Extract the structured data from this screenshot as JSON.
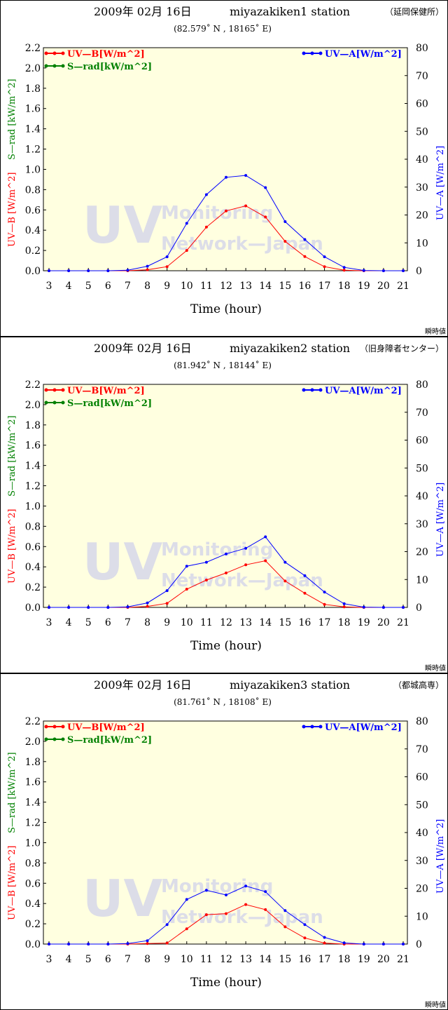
{
  "colors": {
    "plot_bg": "#ffffe0",
    "uvb": "#ff0000",
    "uva": "#0000ff",
    "srad": "#008000",
    "watermark": "#dcdde8"
  },
  "watermark": {
    "big": "UV",
    "line1": "Monitoring",
    "line2": "Network—Japan"
  },
  "chart_data": [
    {
      "type": "line",
      "date": "2009年 02月 16日",
      "station": "miyazakiken1 station",
      "station_jp": "（延岡保健所）",
      "coords": "(82.579˚ N , 18165˚ E)",
      "xlabel": "Time (hour)",
      "ylabel_left_red": "UV—B [W/m^2]",
      "ylabel_left_green": "S—rad [kW/m^2]",
      "ylabel_right": "UV—A [W/m^2]",
      "ylim_left": [
        0,
        2.2
      ],
      "ylim_right": [
        0,
        80
      ],
      "xlim": [
        3,
        21
      ],
      "x_ticks": [
        "3",
        "4",
        "5",
        "6",
        "7",
        "8",
        "9",
        "10",
        "11",
        "12",
        "13",
        "14",
        "15",
        "16",
        "17",
        "18",
        "19",
        "20",
        "21"
      ],
      "y_ticks_left": [
        "0.0",
        "0.2",
        "0.4",
        "0.6",
        "0.8",
        "1.0",
        "1.2",
        "1.4",
        "1.6",
        "1.8",
        "2.0",
        "2.2"
      ],
      "y_ticks_right": [
        "0",
        "10",
        "20",
        "30",
        "40",
        "50",
        "60",
        "70",
        "80"
      ],
      "legend": {
        "uvb": "UV—B[W/m^2]",
        "srad": "S—rad[kW/m^2]",
        "uva": "UV—A[W/m^2]"
      },
      "note": "瞬時値",
      "series": [
        {
          "name": "UV—B[W/m^2]",
          "axis": "left",
          "color": "#ff0000",
          "x": [
            3,
            4,
            5,
            6,
            7,
            8,
            9,
            10,
            11,
            12,
            13,
            14,
            15,
            16,
            17,
            18,
            19,
            20,
            21
          ],
          "y": [
            0,
            0,
            0,
            0,
            0,
            0.01,
            0.04,
            0.2,
            0.43,
            0.59,
            0.64,
            0.53,
            0.29,
            0.14,
            0.04,
            0.005,
            0,
            0,
            0
          ]
        },
        {
          "name": "UV—A[W/m^2]",
          "axis": "right",
          "color": "#0000ff",
          "x": [
            3,
            4,
            5,
            6,
            7,
            8,
            9,
            10,
            11,
            12,
            13,
            14,
            15,
            16,
            17,
            18,
            19,
            20,
            21
          ],
          "y": [
            0,
            0,
            0,
            0,
            0.2,
            1.6,
            5,
            17,
            27.3,
            33.5,
            34.2,
            29.8,
            17.6,
            11.2,
            5,
            1.2,
            0.1,
            0,
            0
          ]
        }
      ]
    },
    {
      "type": "line",
      "date": "2009年 02月 16日",
      "station": "miyazakiken2 station",
      "station_jp": "（旧身障者センター）",
      "coords": "(81.942˚ N , 18144˚ E)",
      "xlabel": "Time (hour)",
      "ylabel_left_red": "UV—B [W/m^2]",
      "ylabel_left_green": "S—rad [kW/m^2]",
      "ylabel_right": "UV—A [W/m^2]",
      "ylim_left": [
        0,
        2.2
      ],
      "ylim_right": [
        0,
        80
      ],
      "xlim": [
        3,
        21
      ],
      "x_ticks": [
        "3",
        "4",
        "5",
        "6",
        "7",
        "8",
        "9",
        "10",
        "11",
        "12",
        "13",
        "14",
        "15",
        "16",
        "17",
        "18",
        "19",
        "20",
        "21"
      ],
      "y_ticks_left": [
        "0.0",
        "0.2",
        "0.4",
        "0.6",
        "0.8",
        "1.0",
        "1.2",
        "1.4",
        "1.6",
        "1.8",
        "2.0",
        "2.2"
      ],
      "y_ticks_right": [
        "0",
        "10",
        "20",
        "30",
        "40",
        "50",
        "60",
        "70",
        "80"
      ],
      "legend": {
        "uvb": "UV—B[W/m^2]",
        "srad": "S—rad[kW/m^2]",
        "uva": "UV—A[W/m^2]"
      },
      "note": "瞬時値",
      "series": [
        {
          "name": "UV—B[W/m^2]",
          "axis": "left",
          "color": "#ff0000",
          "x": [
            3,
            4,
            5,
            6,
            7,
            8,
            9,
            10,
            11,
            12,
            13,
            14,
            15,
            16,
            17,
            18,
            19,
            20,
            21
          ],
          "y": [
            0,
            0,
            0,
            0,
            0,
            0.01,
            0.04,
            0.18,
            0.27,
            0.34,
            0.42,
            0.46,
            0.26,
            0.14,
            0.03,
            0.005,
            0,
            0,
            0
          ]
        },
        {
          "name": "UV—A[W/m^2]",
          "axis": "right",
          "color": "#0000ff",
          "x": [
            3,
            4,
            5,
            6,
            7,
            8,
            9,
            10,
            11,
            12,
            13,
            14,
            15,
            16,
            17,
            18,
            19,
            20,
            21
          ],
          "y": [
            0,
            0,
            0,
            0,
            0.2,
            1.6,
            6,
            14.8,
            16.2,
            19.2,
            21.2,
            25.3,
            16.2,
            11.4,
            5.5,
            1.3,
            0.1,
            0,
            0
          ]
        }
      ]
    },
    {
      "type": "line",
      "date": "2009年 02月 16日",
      "station": "miyazakiken3 station",
      "station_jp": "（都城高専）",
      "coords": "(81.761˚ N , 18108˚ E)",
      "xlabel": "Time (hour)",
      "ylabel_left_red": "UV—B [W/m^2]",
      "ylabel_left_green": "S—rad [kW/m^2]",
      "ylabel_right": "UV—A [W/m^2]",
      "ylim_left": [
        0,
        2.2
      ],
      "ylim_right": [
        0,
        80
      ],
      "xlim": [
        3,
        21
      ],
      "x_ticks": [
        "3",
        "4",
        "5",
        "6",
        "7",
        "8",
        "9",
        "10",
        "11",
        "12",
        "13",
        "14",
        "15",
        "16",
        "17",
        "18",
        "19",
        "20",
        "21"
      ],
      "y_ticks_left": [
        "0.0",
        "0.2",
        "0.4",
        "0.6",
        "0.8",
        "1.0",
        "1.2",
        "1.4",
        "1.6",
        "1.8",
        "2.0",
        "2.2"
      ],
      "y_ticks_right": [
        "0",
        "10",
        "20",
        "30",
        "40",
        "50",
        "60",
        "70",
        "80"
      ],
      "legend": {
        "uvb": "UV—B[W/m^2]",
        "srad": "S—rad[kW/m^2]",
        "uva": "UV—A[W/m^2]"
      },
      "note": "瞬時値",
      "series": [
        {
          "name": "UV—B[W/m^2]",
          "axis": "left",
          "color": "#ff0000",
          "x": [
            3,
            4,
            5,
            6,
            7,
            8,
            9,
            10,
            11,
            12,
            13,
            14,
            15,
            16,
            17,
            18,
            19,
            20,
            21
          ],
          "y": [
            0,
            0,
            0,
            0,
            0,
            0.005,
            0.01,
            0.15,
            0.29,
            0.3,
            0.39,
            0.34,
            0.17,
            0.06,
            0.01,
            0,
            0,
            0,
            0
          ]
        },
        {
          "name": "UV—A[W/m^2]",
          "axis": "right",
          "color": "#0000ff",
          "x": [
            3,
            4,
            5,
            6,
            7,
            8,
            9,
            10,
            11,
            12,
            13,
            14,
            15,
            16,
            17,
            18,
            19,
            20,
            21
          ],
          "y": [
            0,
            0,
            0,
            0,
            0.2,
            1.2,
            7,
            16,
            19.3,
            17.6,
            20.8,
            18.8,
            12,
            7,
            2.4,
            0.4,
            0,
            0,
            0
          ]
        }
      ]
    }
  ]
}
